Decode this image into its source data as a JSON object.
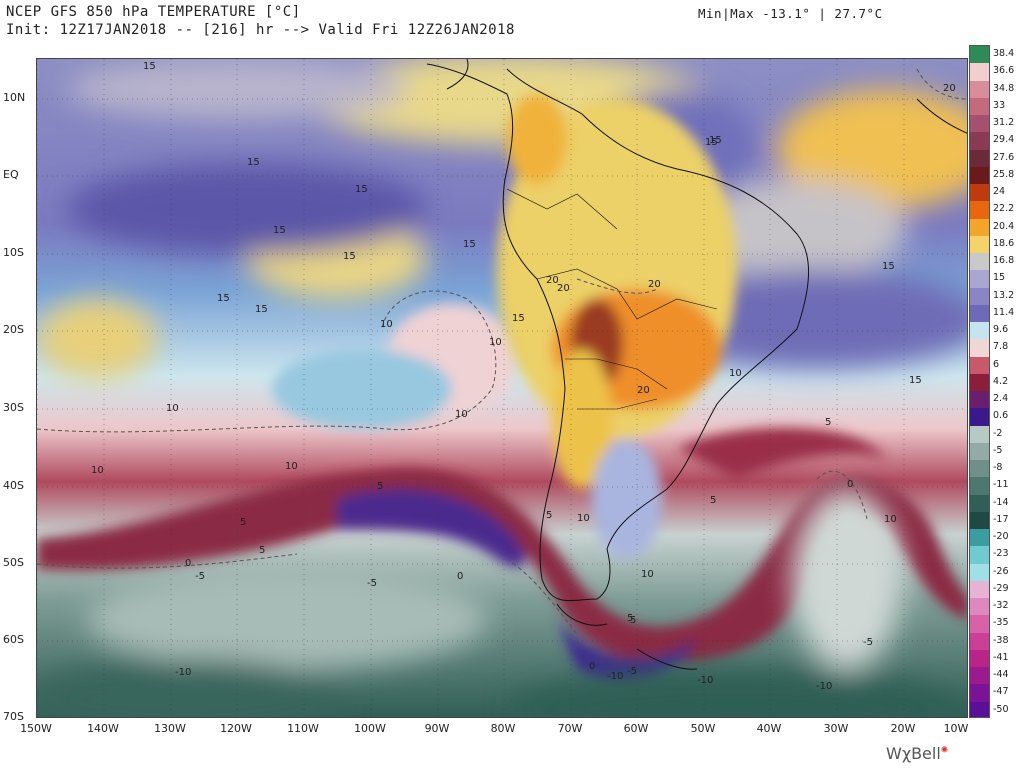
{
  "header": {
    "title": "NCEP GFS 850 hPa TEMPERATURE [°C]",
    "init": "Init: 12Z17JAN2018 -- [216] hr --> Valid Fri 12Z26JAN2018",
    "minmax": "Min|Max -13.1° | 27.7°C"
  },
  "axes": {
    "lat_labels": [
      "10N",
      "EQ",
      "10S",
      "20S",
      "30S",
      "40S",
      "50S",
      "60S",
      "70S"
    ],
    "lon_labels": [
      "150W",
      "140W",
      "130W",
      "120W",
      "110W",
      "100W",
      "90W",
      "80W",
      "70W",
      "60W",
      "50W",
      "40W",
      "30W",
      "20W",
      "10W"
    ]
  },
  "colorbar": {
    "labels": [
      "38.4",
      "36.6",
      "34.8",
      "33",
      "31.2",
      "29.4",
      "27.6",
      "25.8",
      "24",
      "22.2",
      "20.4",
      "18.6",
      "16.8",
      "15",
      "13.2",
      "11.4",
      "9.6",
      "7.8",
      "6",
      "4.2",
      "2.4",
      "0.6",
      "-2",
      "-5",
      "-8",
      "-11",
      "-14",
      "-17",
      "-20",
      "-23",
      "-26",
      "-29",
      "-32",
      "-35",
      "-38",
      "-41",
      "-44",
      "-47",
      "-50"
    ],
    "colors": [
      "#2e8b57",
      "#f2cfcf",
      "#d98c9c",
      "#c46a7e",
      "#a65070",
      "#8a3a55",
      "#6b2a3a",
      "#6a1a1a",
      "#c03a10",
      "#e8660d",
      "#f2a52a",
      "#f5d36a",
      "#c9c9c9",
      "#a9a6d2",
      "#8a86c6",
      "#6e6ab7",
      "#c5e4ee",
      "#f1d6d6",
      "#c65a6a",
      "#8b1e3b",
      "#6a1f6e",
      "#3a1a8a",
      "#b7c9c4",
      "#94aaa6",
      "#6f8f88",
      "#4e786f",
      "#2f5f56",
      "#1f4a44",
      "#3a9ea0",
      "#6fcbd0",
      "#9ee0e6",
      "#e6b3d2",
      "#de88bd",
      "#d762a8",
      "#cc3f97",
      "#b82487",
      "#9b1b8c",
      "#7b1396",
      "#5a0f9a"
    ]
  },
  "contour_labels": [
    "15",
    "15",
    "15",
    "15",
    "15",
    "15",
    "15",
    "15",
    "15",
    "15",
    "15",
    "15",
    "15",
    "20",
    "20",
    "20",
    "20",
    "20",
    "10",
    "10",
    "10",
    "10",
    "10",
    "10",
    "10",
    "10",
    "10",
    "10",
    "5",
    "5",
    "5",
    "5",
    "5",
    "5",
    "5",
    "5",
    "0",
    "0",
    "0",
    "0",
    "-5",
    "-5",
    "-5",
    "-5",
    "-10",
    "-10",
    "-10",
    "-10"
  ],
  "logo": {
    "text": "WχBell",
    "icon": "sun-icon"
  }
}
